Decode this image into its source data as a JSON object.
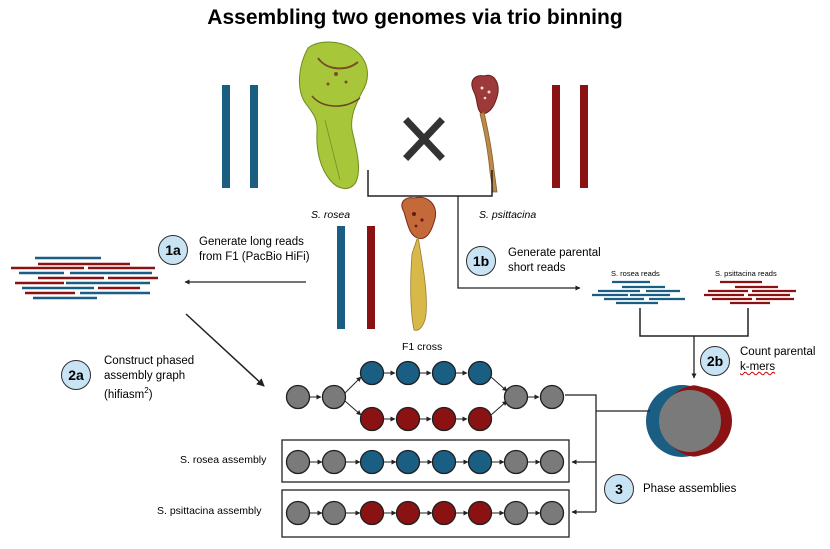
{
  "title": "Assembling two genomes via trio binning",
  "colors": {
    "rosea": "#1b5e83",
    "psittacina": "#8b1212",
    "node_gray": "#7a7a7a",
    "badge_fill": "#c8e3f3"
  },
  "species": {
    "parent1": "S. rosea",
    "parent2": "S. psittacina",
    "cross": "F1 cross"
  },
  "cross_symbol": "✕",
  "steps": {
    "s1a": {
      "badge": "1a",
      "line1": "Generate long reads",
      "line2": "from F1 (PacBio HiFi)"
    },
    "s1b": {
      "badge": "1b",
      "line1": "Generate parental",
      "line2": "short reads"
    },
    "s2a": {
      "badge": "2a",
      "line1": "Construct phased",
      "line2": "assembly graph",
      "line3_pre": "(hifiasm",
      "line3_sup": "2",
      "line3_post": ")"
    },
    "s2b": {
      "badge": "2b",
      "line1": "Count parental",
      "line2": "k-mers"
    },
    "s3": {
      "badge": "3",
      "line1": "Phase assemblies"
    }
  },
  "reads": {
    "rosea_label": "S. rosea reads",
    "psittacina_label": "S. psittacina reads"
  },
  "assemblies": {
    "rosea": "S. rosea assembly",
    "psittacina": "S. psittacina assembly"
  }
}
